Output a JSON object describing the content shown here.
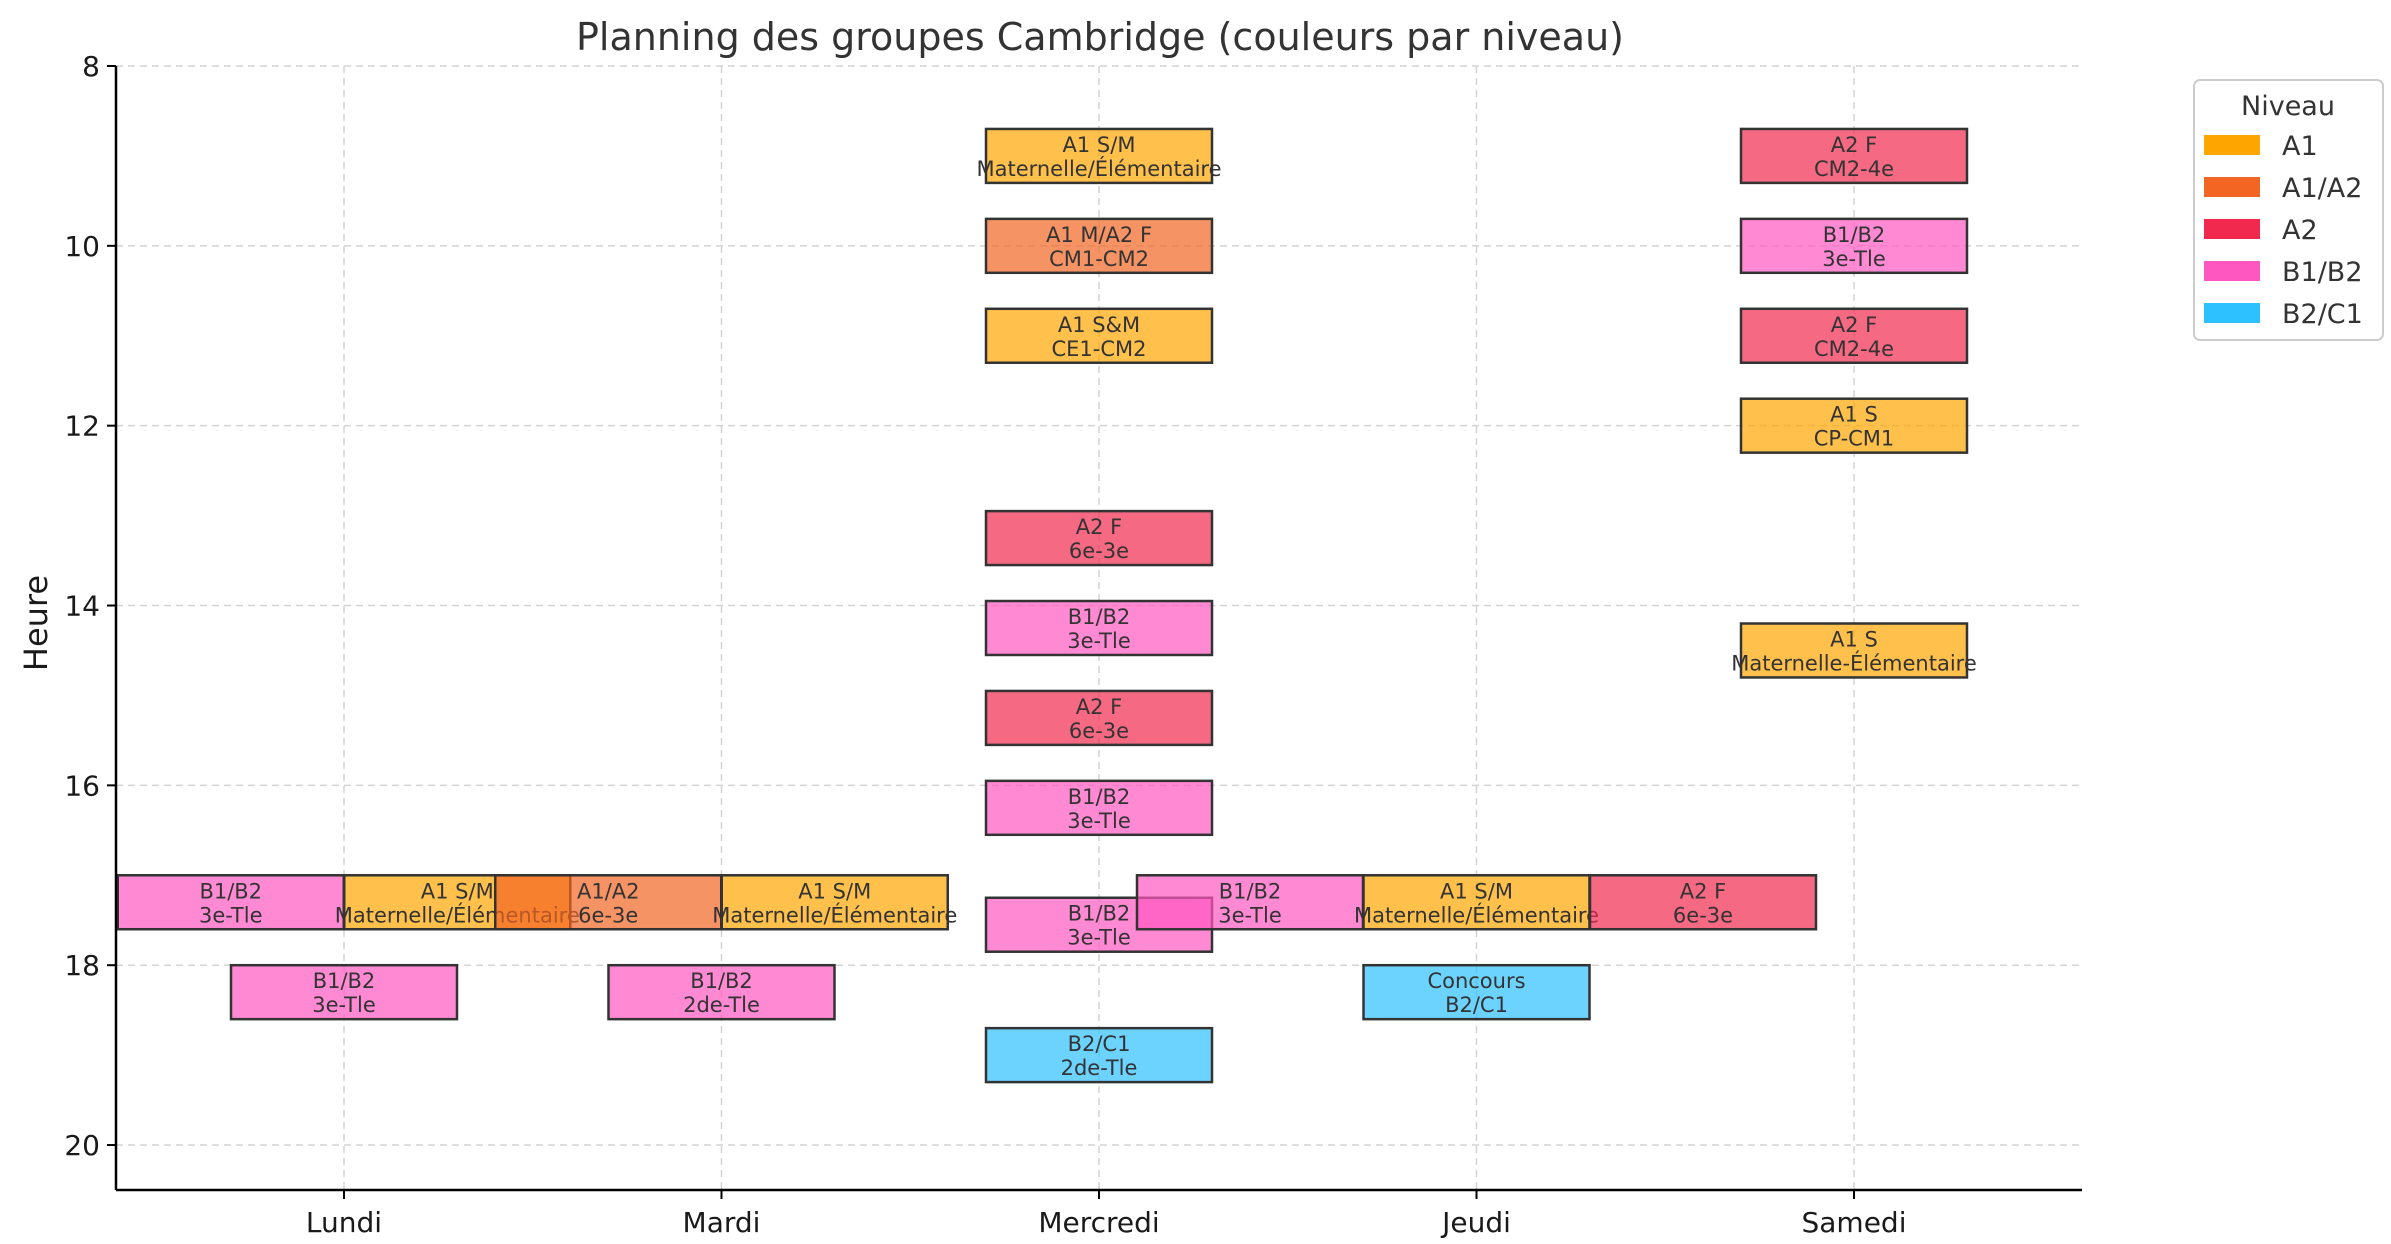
{
  "chart_data": {
    "type": "bar",
    "orientation": "timeline",
    "title": "Planning des groupes Cambridge (couleurs par niveau)",
    "xlabel": "",
    "ylabel": "Heure",
    "categories": [
      "Lundi",
      "Mardi",
      "Mercredi",
      "Jeudi",
      "Samedi"
    ],
    "y_ticks": [
      8,
      10,
      12,
      14,
      16,
      18,
      20
    ],
    "ylim": [
      20.5,
      8
    ],
    "y_inverted": true,
    "grid": true,
    "legend_title": "Niveau",
    "legend_position": "outside-top-right",
    "levels": [
      {
        "name": "A1",
        "color": "#FFA500"
      },
      {
        "name": "A1/A2",
        "color": "#F26522"
      },
      {
        "name": "A2",
        "color": "#F2294E"
      },
      {
        "name": "B1/B2",
        "color": "#FF57C0"
      },
      {
        "name": "B2/C1",
        "color": "#2EC1FF"
      }
    ],
    "blocks": [
      {
        "day": 0,
        "offset": -0.3,
        "start": 17.0,
        "end": 17.6,
        "level": "B1/B2",
        "line1": "B1/B2",
        "line2": "3e-Tle"
      },
      {
        "day": 0,
        "offset": 0.3,
        "start": 17.0,
        "end": 17.6,
        "level": "A1",
        "line1": "A1 S/M",
        "line2": "Maternelle/Élémentaire"
      },
      {
        "day": 0,
        "offset": 0.7,
        "start": 17.0,
        "end": 17.6,
        "level": "A1/A2",
        "line1": "A1/A2",
        "line2": "6e-3e"
      },
      {
        "day": 0,
        "offset": 0.0,
        "start": 18.0,
        "end": 18.6,
        "level": "B1/B2",
        "line1": "B1/B2",
        "line2": "3e-Tle"
      },
      {
        "day": 1,
        "offset": 0.3,
        "start": 17.0,
        "end": 17.6,
        "level": "A1",
        "line1": "A1 S/M",
        "line2": "Maternelle/Élémentaire"
      },
      {
        "day": 1,
        "offset": 0.0,
        "start": 18.0,
        "end": 18.6,
        "level": "B1/B2",
        "line1": "B1/B2",
        "line2": "2de-Tle"
      },
      {
        "day": 2,
        "offset": 0.0,
        "start": 8.7,
        "end": 9.3,
        "level": "A1",
        "line1": "A1 S/M",
        "line2": "Maternelle/Élémentaire"
      },
      {
        "day": 2,
        "offset": 0.0,
        "start": 9.7,
        "end": 10.3,
        "level": "A1/A2",
        "line1": "A1 M/A2 F",
        "line2": "CM1-CM2"
      },
      {
        "day": 2,
        "offset": 0.0,
        "start": 10.7,
        "end": 11.3,
        "level": "A1",
        "line1": "A1 S&M",
        "line2": "CE1-CM2"
      },
      {
        "day": 2,
        "offset": 0.0,
        "start": 12.95,
        "end": 13.55,
        "level": "A2",
        "line1": "A2 F",
        "line2": "6e-3e"
      },
      {
        "day": 2,
        "offset": 0.0,
        "start": 13.95,
        "end": 14.55,
        "level": "B1/B2",
        "line1": "B1/B2",
        "line2": "3e-Tle"
      },
      {
        "day": 2,
        "offset": 0.0,
        "start": 14.95,
        "end": 15.55,
        "level": "A2",
        "line1": "A2 F",
        "line2": "6e-3e"
      },
      {
        "day": 2,
        "offset": 0.0,
        "start": 15.95,
        "end": 16.55,
        "level": "B1/B2",
        "line1": "B1/B2",
        "line2": "3e-Tle"
      },
      {
        "day": 2,
        "offset": 0.0,
        "start": 17.25,
        "end": 17.85,
        "level": "B1/B2",
        "line1": "B1/B2",
        "line2": "3e-Tle"
      },
      {
        "day": 2,
        "offset": 0.4,
        "start": 17.0,
        "end": 17.6,
        "level": "B1/B2",
        "line1": "B1/B2",
        "line2": "3e-Tle"
      },
      {
        "day": 2,
        "offset": 0.0,
        "start": 18.7,
        "end": 19.3,
        "level": "B2/C1",
        "line1": "B2/C1",
        "line2": "2de-Tle"
      },
      {
        "day": 3,
        "offset": 0.0,
        "start": 17.0,
        "end": 17.6,
        "level": "A1",
        "line1": "A1 S/M",
        "line2": "Maternelle/Élémentaire"
      },
      {
        "day": 3,
        "offset": 0.6,
        "start": 17.0,
        "end": 17.6,
        "level": "A2",
        "line1": "A2 F",
        "line2": "6e-3e"
      },
      {
        "day": 3,
        "offset": 0.0,
        "start": 18.0,
        "end": 18.6,
        "level": "B2/C1",
        "line1": "Concours",
        "line2": "B2/C1"
      },
      {
        "day": 4,
        "offset": 0.0,
        "start": 8.7,
        "end": 9.3,
        "level": "A2",
        "line1": "A2 F",
        "line2": "CM2-4e"
      },
      {
        "day": 4,
        "offset": 0.0,
        "start": 9.7,
        "end": 10.3,
        "level": "B1/B2",
        "line1": "B1/B2",
        "line2": "3e-Tle"
      },
      {
        "day": 4,
        "offset": 0.0,
        "start": 10.7,
        "end": 11.3,
        "level": "A2",
        "line1": "A2 F",
        "line2": "CM2-4e"
      },
      {
        "day": 4,
        "offset": 0.0,
        "start": 11.7,
        "end": 12.3,
        "level": "A1",
        "line1": "A1 S",
        "line2": "CP-CM1"
      },
      {
        "day": 4,
        "offset": 0.0,
        "start": 14.2,
        "end": 14.8,
        "level": "A1",
        "line1": "A1 S",
        "line2": "Maternelle-Élémentaire"
      }
    ]
  }
}
